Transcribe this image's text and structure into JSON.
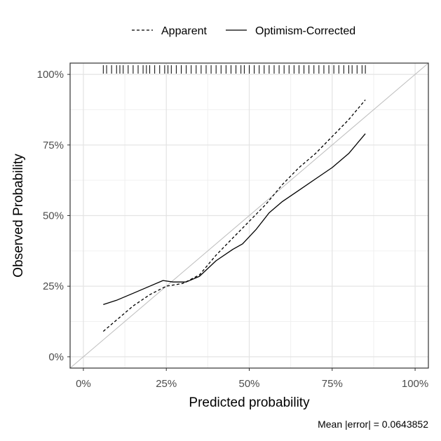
{
  "chart_data": {
    "type": "line",
    "xlabel": "Predicted probability",
    "ylabel": "Observed Probability",
    "xlim": [
      -0.04,
      1.04
    ],
    "ylim": [
      -0.04,
      1.04
    ],
    "x_ticks": [
      0,
      0.25,
      0.5,
      0.75,
      1.0
    ],
    "x_tick_labels": [
      "0%",
      "25%",
      "50%",
      "75%",
      "100%"
    ],
    "y_ticks": [
      0,
      0.25,
      0.5,
      0.75,
      1.0
    ],
    "y_tick_labels": [
      "0%",
      "25%",
      "50%",
      "75%",
      "100%"
    ],
    "grid": true,
    "legend_position": "top",
    "reference_line": {
      "from": [
        -0.04,
        -0.04
      ],
      "to": [
        1.04,
        1.04
      ],
      "color": "#bdbdbd"
    },
    "series": [
      {
        "name": "Apparent",
        "dash": "dashed",
        "color": "#000000",
        "x": [
          0.06,
          0.1,
          0.15,
          0.2,
          0.25,
          0.3,
          0.35,
          0.4,
          0.45,
          0.5,
          0.55,
          0.6,
          0.65,
          0.7,
          0.75,
          0.8,
          0.85
        ],
        "y": [
          0.09,
          0.13,
          0.18,
          0.22,
          0.25,
          0.26,
          0.29,
          0.36,
          0.42,
          0.48,
          0.54,
          0.61,
          0.67,
          0.72,
          0.78,
          0.84,
          0.91
        ]
      },
      {
        "name": "Optimism-Corrected",
        "dash": "solid",
        "color": "#000000",
        "x": [
          0.06,
          0.1,
          0.15,
          0.2,
          0.24,
          0.27,
          0.31,
          0.35,
          0.4,
          0.45,
          0.48,
          0.52,
          0.56,
          0.6,
          0.65,
          0.7,
          0.75,
          0.8,
          0.85
        ],
        "y": [
          0.185,
          0.2,
          0.225,
          0.25,
          0.27,
          0.265,
          0.265,
          0.285,
          0.34,
          0.38,
          0.4,
          0.45,
          0.51,
          0.55,
          0.59,
          0.63,
          0.67,
          0.72,
          0.79
        ]
      }
    ],
    "rug": [
      0.06,
      0.07,
      0.085,
      0.1,
      0.11,
      0.12,
      0.135,
      0.15,
      0.165,
      0.18,
      0.19,
      0.2,
      0.215,
      0.23,
      0.245,
      0.255,
      0.265,
      0.28,
      0.295,
      0.31,
      0.325,
      0.34,
      0.355,
      0.37,
      0.385,
      0.4,
      0.415,
      0.43,
      0.445,
      0.46,
      0.475,
      0.485,
      0.5,
      0.515,
      0.53,
      0.545,
      0.56,
      0.575,
      0.59,
      0.605,
      0.62,
      0.635,
      0.65,
      0.665,
      0.68,
      0.695,
      0.71,
      0.725,
      0.74,
      0.755,
      0.77,
      0.785,
      0.8,
      0.81,
      0.825,
      0.84,
      0.85
    ]
  },
  "caption": "Mean |error| = 0.0643852"
}
